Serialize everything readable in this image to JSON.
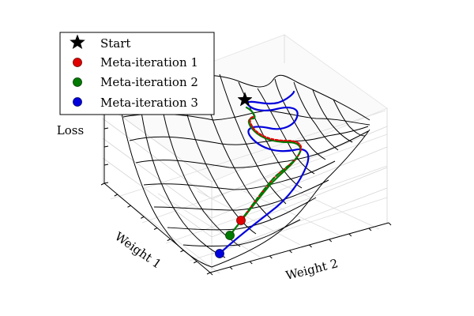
{
  "chart_data": {
    "type": "surface-3d",
    "zlabel": "Loss",
    "xlabel": "Weight 1",
    "ylabel": "Weight 2",
    "legend_position": "top-left",
    "grid": true,
    "legend": [
      {
        "name": "Start",
        "marker": "star",
        "color": "#000000"
      },
      {
        "name": "Meta-iteration 1",
        "marker": "circle",
        "color": "#e00000"
      },
      {
        "name": "Meta-iteration 2",
        "marker": "circle",
        "color": "#007a00"
      },
      {
        "name": "Meta-iteration 3",
        "marker": "circle",
        "color": "#0000dd"
      }
    ]
  }
}
